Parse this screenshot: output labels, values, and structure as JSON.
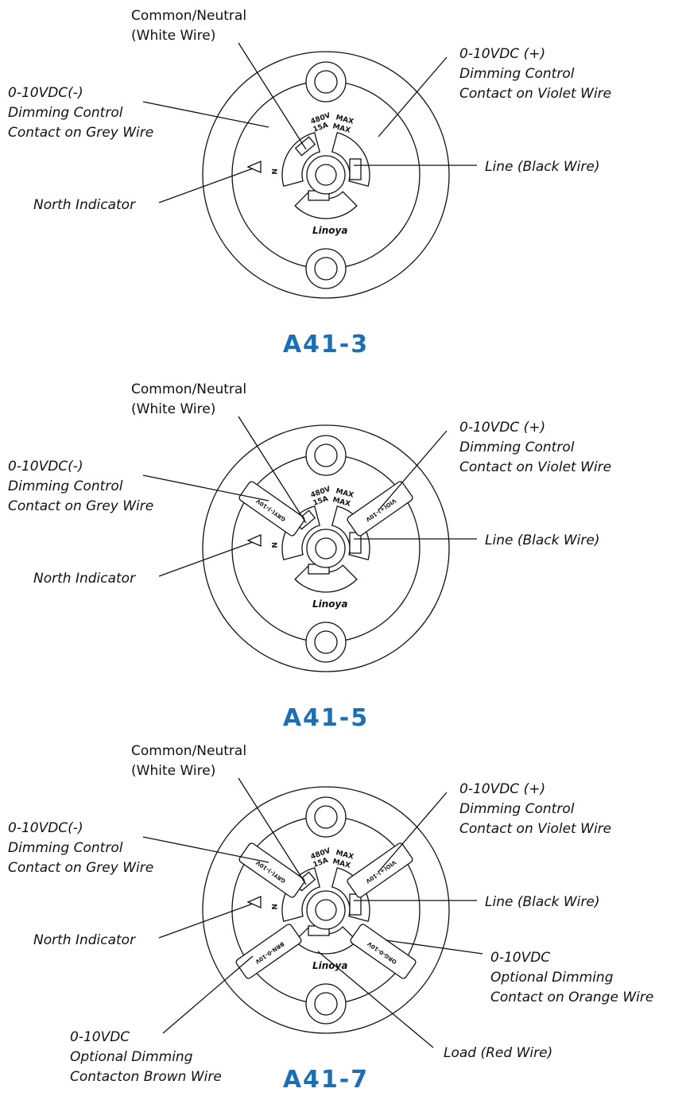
{
  "diagrams": [
    {
      "title": "A41-3",
      "labels": {
        "common": [
          "Common/Neutral",
          "(White Wire)"
        ],
        "grey": [
          "0-10VDC(-)",
          "Dimming Control",
          "Contact on Grey Wire"
        ],
        "violet": [
          "0-10VDC (+)",
          "Dimming Control",
          "Contact on Violet Wire"
        ],
        "line": [
          "Line (Black Wire)"
        ],
        "north": [
          "North Indicator"
        ]
      },
      "markings": [
        "480V",
        "15A",
        "MAX",
        "MAX",
        "N",
        "Linoya"
      ],
      "contacts": {}
    },
    {
      "title": "A41-5",
      "labels": {
        "common": [
          "Common/Neutral",
          "(White Wire)"
        ],
        "grey": [
          "0-10VDC(-)",
          "Dimming Control",
          "Contact on Grey Wire"
        ],
        "violet": [
          "0-10VDC (+)",
          "Dimming Control",
          "Contact on Violet Wire"
        ],
        "line": [
          "Line (Black Wire)"
        ],
        "north": [
          "North Indicator"
        ]
      },
      "markings": [
        "480V",
        "15A",
        "MAX",
        "MAX",
        "N",
        "Linoya"
      ],
      "contacts": {
        "grey": "GRY(-)-10V",
        "violet": "VIO(+)-10V"
      }
    },
    {
      "title": "A41-7",
      "labels": {
        "common": [
          "Common/Neutral",
          "(White Wire)"
        ],
        "grey": [
          "0-10VDC(-)",
          "Dimming Control",
          "Contact on Grey Wire"
        ],
        "violet": [
          "0-10VDC (+)",
          "Dimming Control",
          "Contact on Violet Wire"
        ],
        "line": [
          "Line (Black Wire)"
        ],
        "north": [
          "North Indicator"
        ],
        "orange": [
          "0-10VDC",
          "Optional Dimming",
          "Contact on Orange Wire"
        ],
        "brown": [
          "0-10VDC",
          "Optional Dimming",
          "Contacton Brown Wire"
        ],
        "load": [
          "Load (Red Wire)"
        ]
      },
      "markings": [
        "480V",
        "15A",
        "MAX",
        "MAX",
        "N",
        "Linoya"
      ],
      "contacts": {
        "grey": "GRY(-)-10V",
        "violet": "VIO(+)-10V",
        "brown": "BRN-0-10V",
        "orange": "ORG-0-10V"
      }
    }
  ]
}
